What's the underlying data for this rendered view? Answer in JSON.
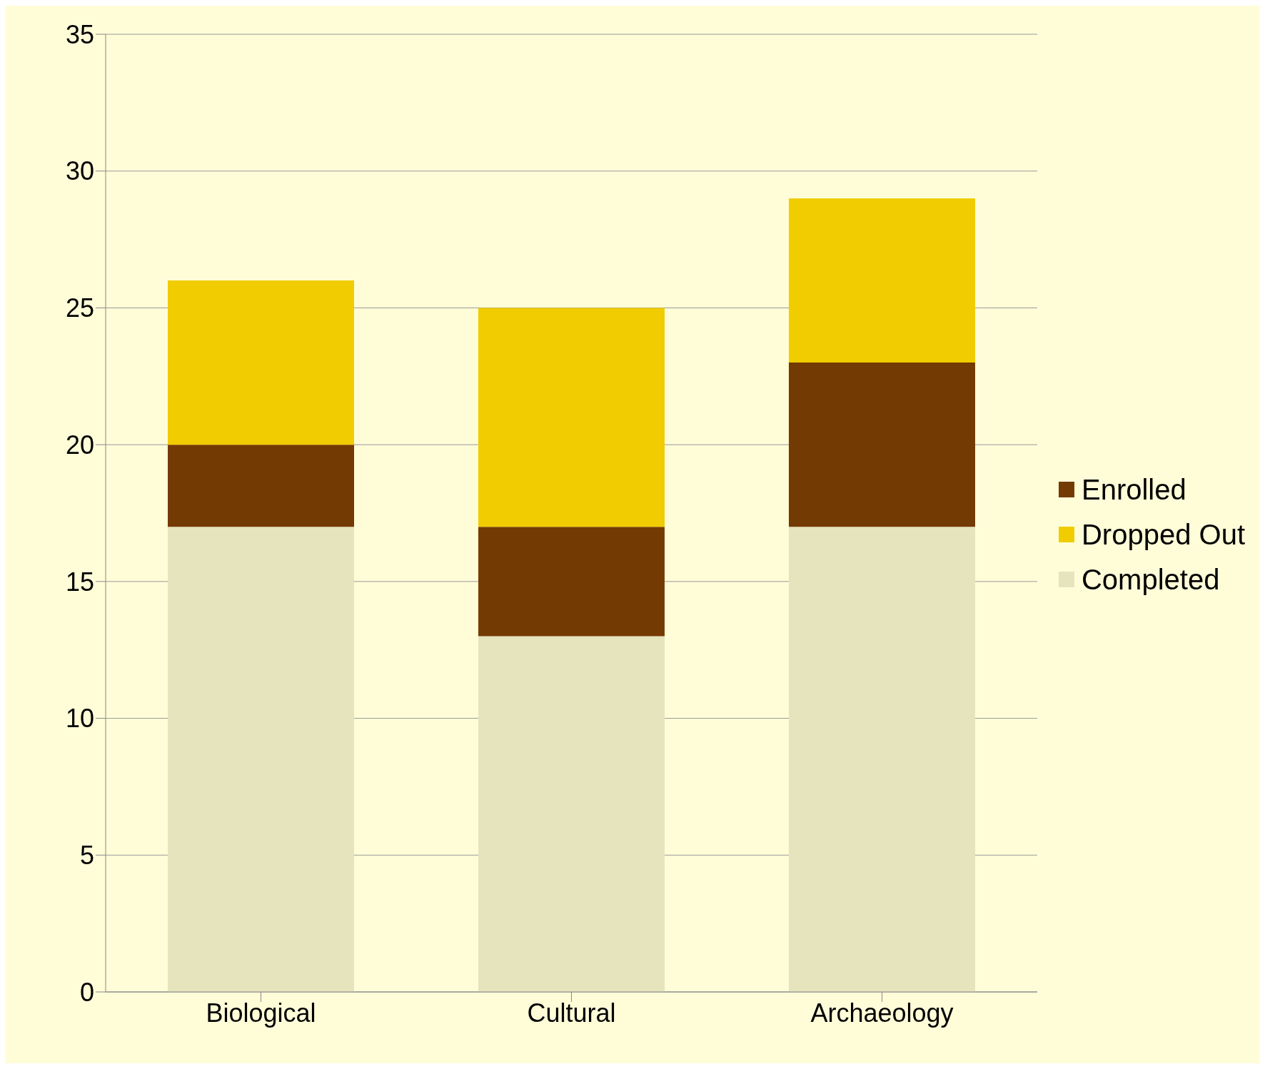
{
  "chart_data": {
    "type": "bar",
    "stacked": true,
    "categories": [
      "Biological",
      "Cultural",
      "Archaeology"
    ],
    "series": [
      {
        "name": "Completed",
        "color": "#e6e4bc",
        "values": [
          17,
          13,
          17
        ]
      },
      {
        "name": "Enrolled",
        "color": "#743a04",
        "values": [
          3,
          4,
          6
        ]
      },
      {
        "name": "Dropped Out",
        "color": "#f0cc00",
        "values": [
          6,
          8,
          6
        ]
      }
    ],
    "ylim": [
      0,
      35
    ],
    "yticks": [
      0,
      5,
      10,
      15,
      20,
      25,
      30,
      35
    ],
    "grid": "y",
    "legend": "right"
  }
}
